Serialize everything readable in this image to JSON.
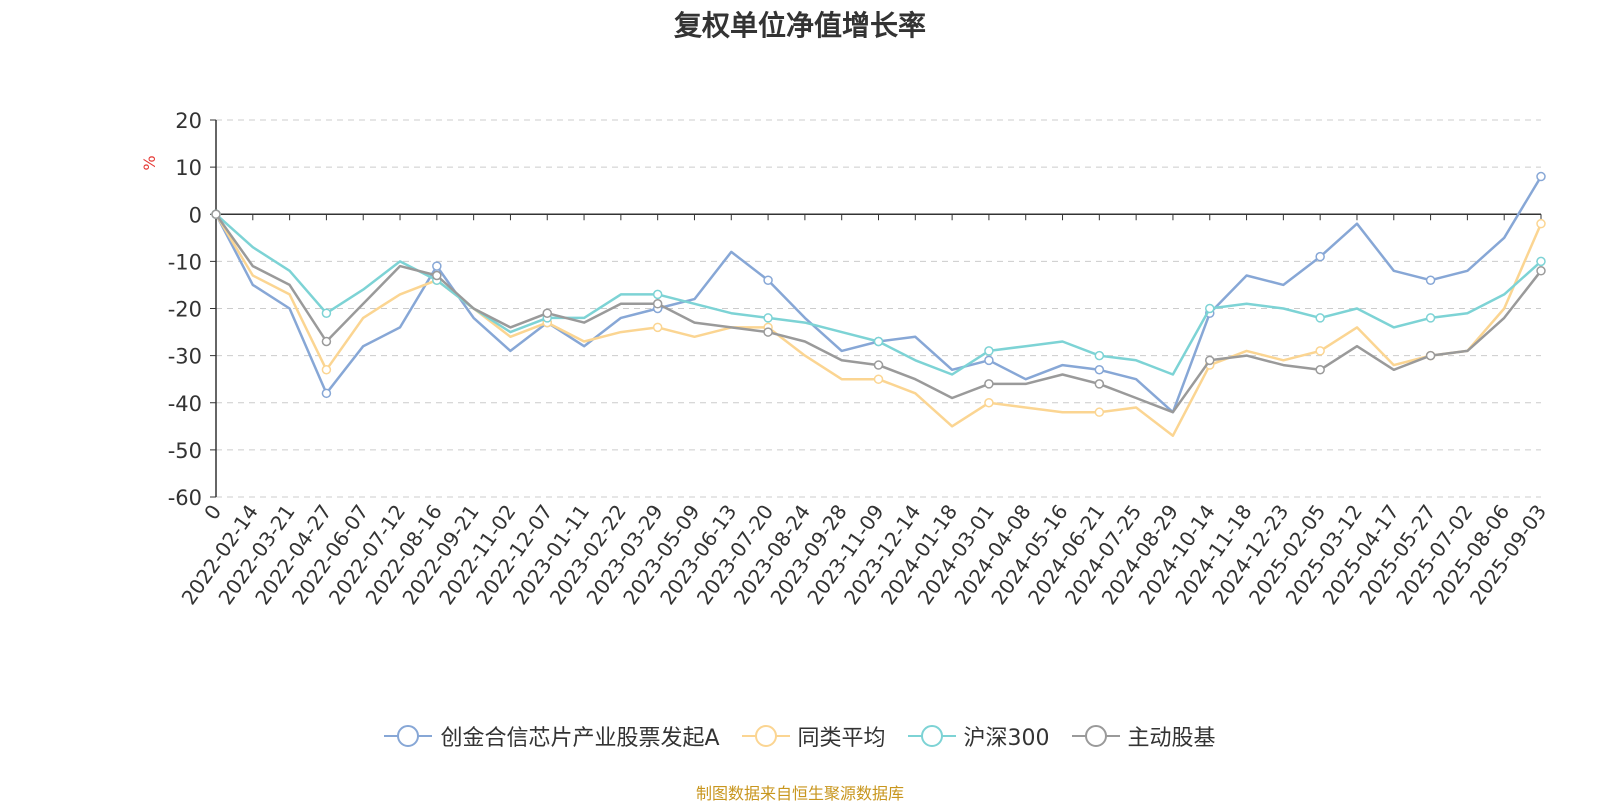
{
  "source_note": "制图数据来自恒生聚源数据库",
  "chart_data": {
    "type": "line",
    "title": "复权单位净值增长率",
    "ylabel": "%",
    "ylim": [
      -60,
      20
    ],
    "yticks": [
      20,
      10,
      0,
      -10,
      -20,
      -30,
      -40,
      -50,
      -60
    ],
    "grid": true,
    "legend_position": "bottom",
    "categories": [
      "0",
      "2022-02-14",
      "2022-03-21",
      "2022-04-27",
      "2022-06-07",
      "2022-07-12",
      "2022-08-16",
      "2022-09-21",
      "2022-11-02",
      "2022-12-07",
      "2023-01-11",
      "2023-02-22",
      "2023-03-29",
      "2023-05-09",
      "2023-06-13",
      "2023-07-20",
      "2023-08-24",
      "2023-09-28",
      "2023-11-09",
      "2023-12-14",
      "2024-01-18",
      "2024-03-01",
      "2024-04-08",
      "2024-05-16",
      "2024-06-21",
      "2024-07-25",
      "2024-08-29",
      "2024-10-14",
      "2024-11-18",
      "2024-12-23",
      "2025-02-05",
      "2025-03-12",
      "2025-04-17",
      "2025-05-27",
      "2025-07-02",
      "2025-08-06",
      "2025-09-03"
    ],
    "series": [
      {
        "name": "创金合信芯片产业股票发起A",
        "color": "#87a7d6",
        "values": [
          0,
          -15,
          -20,
          -38,
          -28,
          -24,
          -11,
          -22,
          -29,
          -23,
          -28,
          -22,
          -20,
          -18,
          -8,
          -14,
          -22,
          -29,
          -27,
          -26,
          -33,
          -31,
          -35,
          -32,
          -33,
          -35,
          -42,
          -21,
          -13,
          -15,
          -9,
          -2,
          -12,
          -14,
          -12,
          -5,
          8
        ]
      },
      {
        "name": "同类平均",
        "color": "#fbd592",
        "values": [
          0,
          -13,
          -17,
          -33,
          -22,
          -17,
          -14,
          -20,
          -26,
          -23,
          -27,
          -25,
          -24,
          -26,
          -24,
          -24,
          -30,
          -35,
          -35,
          -38,
          -45,
          -40,
          -41,
          -42,
          -42,
          -41,
          -47,
          -32,
          -29,
          -31,
          -29,
          -24,
          -32,
          -30,
          -29,
          -20,
          -2
        ]
      },
      {
        "name": "沪深300",
        "color": "#7dd3d5",
        "values": [
          0,
          -7,
          -12,
          -21,
          -16,
          -10,
          -14,
          -20,
          -25,
          -22,
          -22,
          -17,
          -17,
          -19,
          -21,
          -22,
          -23,
          -25,
          -27,
          -31,
          -34,
          -29,
          -28,
          -27,
          -30,
          -31,
          -34,
          -20,
          -19,
          -20,
          -22,
          -20,
          -24,
          -22,
          -21,
          -17,
          -10
        ]
      },
      {
        "name": "主动股基",
        "color": "#9a9a9a",
        "values": [
          0,
          -11,
          -15,
          -27,
          -19,
          -11,
          -13,
          -20,
          -24,
          -21,
          -23,
          -19,
          -19,
          -23,
          -24,
          -25,
          -27,
          -31,
          -32,
          -35,
          -39,
          -36,
          -36,
          -34,
          -36,
          -39,
          -42,
          -31,
          -30,
          -32,
          -33,
          -28,
          -33,
          -30,
          -29,
          -22,
          -12
        ]
      }
    ]
  }
}
